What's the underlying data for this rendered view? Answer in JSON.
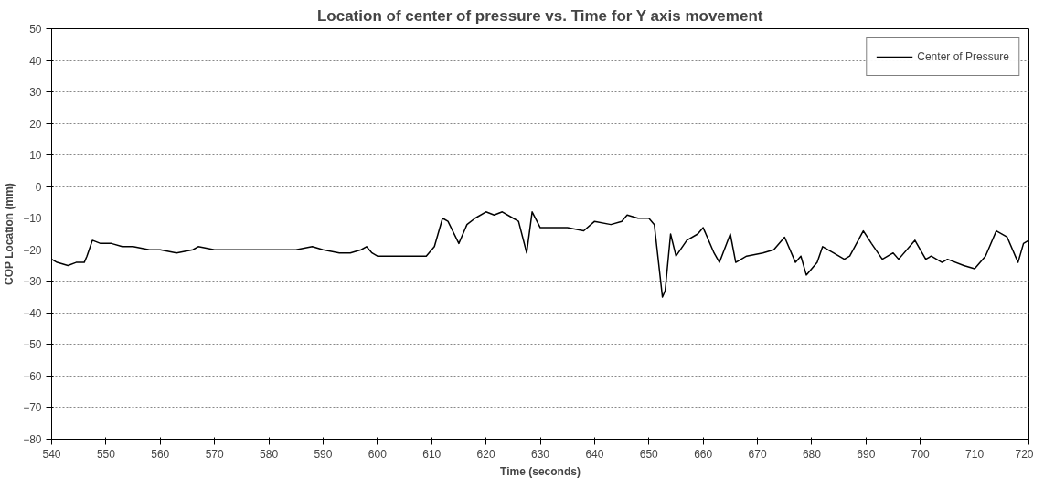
{
  "chart_data": {
    "type": "line",
    "title": "Location of center of pressure vs. Time for Y axis movement",
    "xlabel": "Time (seconds)",
    "ylabel": "COP Location (mm)",
    "x": [
      540,
      541,
      543,
      544.5,
      546,
      546.5,
      547.5,
      549,
      551,
      553,
      555,
      558,
      560,
      563,
      566,
      567,
      570,
      575,
      580,
      585,
      588,
      590,
      593,
      595,
      597,
      598,
      599,
      600,
      603,
      606,
      609,
      610.5,
      612,
      613,
      615,
      616.5,
      618,
      620,
      621.5,
      623,
      625,
      626,
      627.5,
      628.5,
      630,
      632,
      635,
      638,
      640,
      643,
      645,
      646,
      648,
      650,
      651,
      652.5,
      653,
      654,
      655,
      657,
      659,
      660,
      662,
      663,
      665,
      666,
      668,
      671,
      673,
      675,
      677,
      678,
      679,
      681,
      682,
      684,
      686,
      687,
      689.5,
      691,
      693,
      695,
      696,
      699,
      701,
      702,
      704,
      705,
      708,
      710,
      712,
      714,
      716,
      718,
      719,
      720
    ],
    "series": [
      {
        "name": "Center of Pressure",
        "color": "#000000",
        "values": [
          -23,
          -24,
          -25,
          -24,
          -24,
          -22,
          -17,
          -18,
          -18,
          -19,
          -19,
          -20,
          -20,
          -21,
          -20,
          -19,
          -20,
          -20,
          -20,
          -20,
          -19,
          -20,
          -21,
          -21,
          -20,
          -19,
          -21,
          -22,
          -22,
          -22,
          -22,
          -19,
          -10,
          -11,
          -18,
          -12,
          -10,
          -8,
          -9,
          -8,
          -10,
          -11,
          -21,
          -8,
          -13,
          -13,
          -13,
          -14,
          -11,
          -12,
          -11,
          -9,
          -10,
          -10,
          -12,
          -35,
          -33,
          -15,
          -22,
          -17,
          -15,
          -13,
          -21,
          -24,
          -15,
          -24,
          -22,
          -21,
          -20,
          -16,
          -24,
          -22,
          -28,
          -24,
          -19,
          -21,
          -23,
          -22,
          -14,
          -18,
          -23,
          -21,
          -23,
          -17,
          -23,
          -22,
          -24,
          -23,
          -25,
          -26,
          -22,
          -14,
          -16,
          -24,
          -18,
          -17
        ]
      }
    ],
    "xlim": [
      540,
      720
    ],
    "xticks": [
      540,
      550,
      560,
      570,
      580,
      590,
      600,
      610,
      620,
      630,
      640,
      650,
      660,
      670,
      680,
      690,
      700,
      710,
      720
    ],
    "ylim": [
      -80,
      50
    ],
    "yticks": [
      -80,
      -70,
      -60,
      -50,
      -40,
      -30,
      -20,
      -10,
      0,
      10,
      20,
      30,
      40,
      50
    ],
    "grid": "y",
    "legend": "top right",
    "marker": "none",
    "line_style": "solid"
  }
}
